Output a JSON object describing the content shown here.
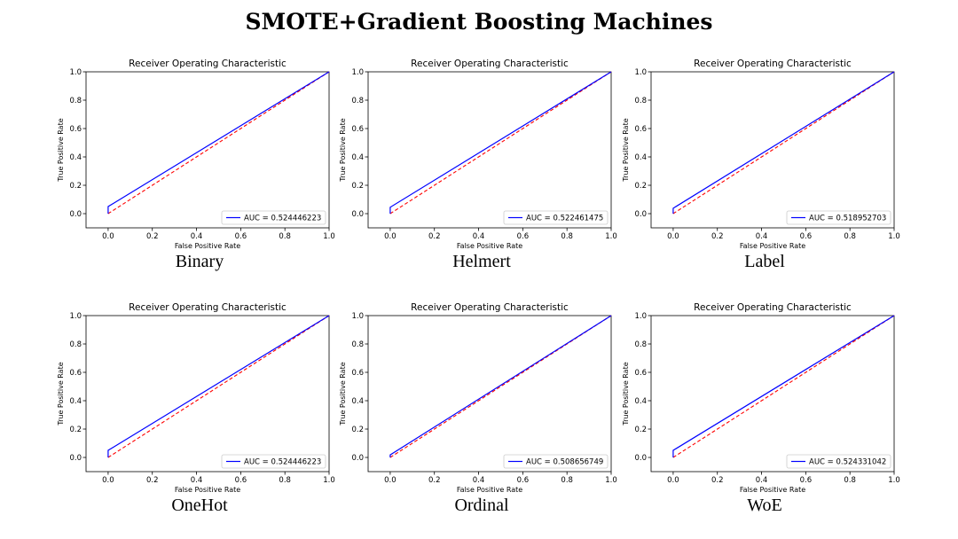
{
  "page_title": "SMOTE+Gradient Boosting Machines",
  "chart_data": [
    {
      "type": "line",
      "caption": "Binary",
      "title": "Receiver Operating Characteristic",
      "xlabel": "False Positive Rate",
      "ylabel": "True Positive Rate",
      "xlim": [
        -0.1,
        1.0
      ],
      "ylim": [
        -0.1,
        1.0
      ],
      "xticks": [
        "0.0",
        "0.2",
        "0.4",
        "0.6",
        "0.8",
        "1.0"
      ],
      "yticks": [
        "0.0",
        "0.2",
        "0.4",
        "0.6",
        "0.8",
        "1.0"
      ],
      "legend": "lower-right",
      "auc_label": "AUC = 0.524446223",
      "roc_x": [
        0.0,
        0.0,
        1.0
      ],
      "roc_y": [
        0.0,
        0.05,
        1.0
      ],
      "baseline_x": [
        0.0,
        1.0
      ],
      "baseline_y": [
        0.0,
        1.0
      ]
    },
    {
      "type": "line",
      "caption": "Helmert",
      "title": "Receiver Operating Characteristic",
      "xlabel": "False Positive Rate",
      "ylabel": "True Positive Rate",
      "xlim": [
        -0.1,
        1.0
      ],
      "ylim": [
        -0.1,
        1.0
      ],
      "xticks": [
        "0.0",
        "0.2",
        "0.4",
        "0.6",
        "0.8",
        "1.0"
      ],
      "yticks": [
        "0.0",
        "0.2",
        "0.4",
        "0.6",
        "0.8",
        "1.0"
      ],
      "legend": "lower-right",
      "auc_label": "AUC = 0.522461475",
      "roc_x": [
        0.0,
        0.0,
        1.0
      ],
      "roc_y": [
        0.0,
        0.045,
        1.0
      ],
      "baseline_x": [
        0.0,
        1.0
      ],
      "baseline_y": [
        0.0,
        1.0
      ]
    },
    {
      "type": "line",
      "caption": "Label",
      "title": "Receiver Operating Characteristic",
      "xlabel": "False Positive Rate",
      "ylabel": "True Positive Rate",
      "xlim": [
        -0.1,
        1.0
      ],
      "ylim": [
        -0.1,
        1.0
      ],
      "xticks": [
        "0.0",
        "0.2",
        "0.4",
        "0.6",
        "0.8",
        "1.0"
      ],
      "yticks": [
        "0.0",
        "0.2",
        "0.4",
        "0.6",
        "0.8",
        "1.0"
      ],
      "legend": "lower-right",
      "auc_label": "AUC = 0.518952703",
      "roc_x": [
        0.0,
        0.0,
        1.0
      ],
      "roc_y": [
        0.0,
        0.038,
        1.0
      ],
      "baseline_x": [
        0.0,
        1.0
      ],
      "baseline_y": [
        0.0,
        1.0
      ]
    },
    {
      "type": "line",
      "caption": "OneHot",
      "title": "Receiver Operating Characteristic",
      "xlabel": "False Positive Rate",
      "ylabel": "True Positive Rate",
      "xlim": [
        -0.1,
        1.0
      ],
      "ylim": [
        -0.1,
        1.0
      ],
      "xticks": [
        "0.0",
        "0.2",
        "0.4",
        "0.6",
        "0.8",
        "1.0"
      ],
      "yticks": [
        "0.0",
        "0.2",
        "0.4",
        "0.6",
        "0.8",
        "1.0"
      ],
      "legend": "lower-right",
      "auc_label": "AUC = 0.524446223",
      "roc_x": [
        0.0,
        0.0,
        1.0
      ],
      "roc_y": [
        0.0,
        0.05,
        1.0
      ],
      "baseline_x": [
        0.0,
        1.0
      ],
      "baseline_y": [
        0.0,
        1.0
      ]
    },
    {
      "type": "line",
      "caption": "Ordinal",
      "title": "Receiver Operating Characteristic",
      "xlabel": "False Positive Rate",
      "ylabel": "True Positive Rate",
      "xlim": [
        -0.1,
        1.0
      ],
      "ylim": [
        -0.1,
        1.0
      ],
      "xticks": [
        "0.0",
        "0.2",
        "0.4",
        "0.6",
        "0.8",
        "1.0"
      ],
      "yticks": [
        "0.0",
        "0.2",
        "0.4",
        "0.6",
        "0.8",
        "1.0"
      ],
      "legend": "lower-right",
      "auc_label": "AUC = 0.508656749",
      "roc_x": [
        0.0,
        0.0,
        1.0
      ],
      "roc_y": [
        0.0,
        0.018,
        1.0
      ],
      "baseline_x": [
        0.0,
        1.0
      ],
      "baseline_y": [
        0.0,
        1.0
      ]
    },
    {
      "type": "line",
      "caption": "WoE",
      "title": "Receiver Operating Characteristic",
      "xlabel": "False Positive Rate",
      "ylabel": "True Positive Rate",
      "xlim": [
        -0.1,
        1.0
      ],
      "ylim": [
        -0.1,
        1.0
      ],
      "xticks": [
        "0.0",
        "0.2",
        "0.4",
        "0.6",
        "0.8",
        "1.0"
      ],
      "yticks": [
        "0.0",
        "0.2",
        "0.4",
        "0.6",
        "0.8",
        "1.0"
      ],
      "legend": "lower-right",
      "auc_label": "AUC = 0.524331042",
      "roc_x": [
        0.0,
        0.0,
        1.0
      ],
      "roc_y": [
        0.0,
        0.05,
        1.0
      ],
      "baseline_x": [
        0.0,
        1.0
      ],
      "baseline_y": [
        0.0,
        1.0
      ]
    }
  ],
  "colors": {
    "roc_line": "#0000ff",
    "baseline": "#ff0000"
  }
}
